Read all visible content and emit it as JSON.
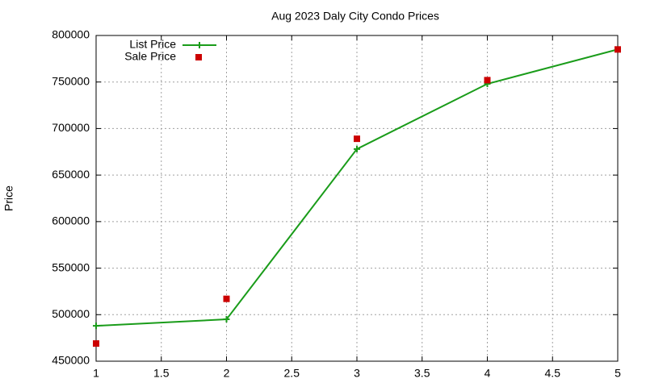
{
  "chart_data": {
    "type": "line",
    "title": "Aug 2023 Daly City Condo Prices",
    "y_label": "Price",
    "x": [
      1,
      2,
      3,
      4,
      5
    ],
    "series": [
      {
        "name": "List Price",
        "color": "#1a9c1a",
        "style": "line-points",
        "values": [
          488000,
          495000,
          678000,
          748000,
          785000
        ]
      },
      {
        "name": "Sale Price",
        "color": "#cc0000",
        "style": "points",
        "values": [
          469000,
          517000,
          689000,
          752000,
          785000
        ]
      }
    ],
    "xlim": [
      1,
      5
    ],
    "xticks": [
      1,
      1.5,
      2,
      2.5,
      3,
      3.5,
      4,
      4.5,
      5
    ],
    "ylim": [
      450000,
      800000
    ],
    "yticks": [
      450000,
      500000,
      550000,
      600000,
      650000,
      700000,
      750000,
      800000
    ],
    "grid": true,
    "legend": "top-left"
  }
}
